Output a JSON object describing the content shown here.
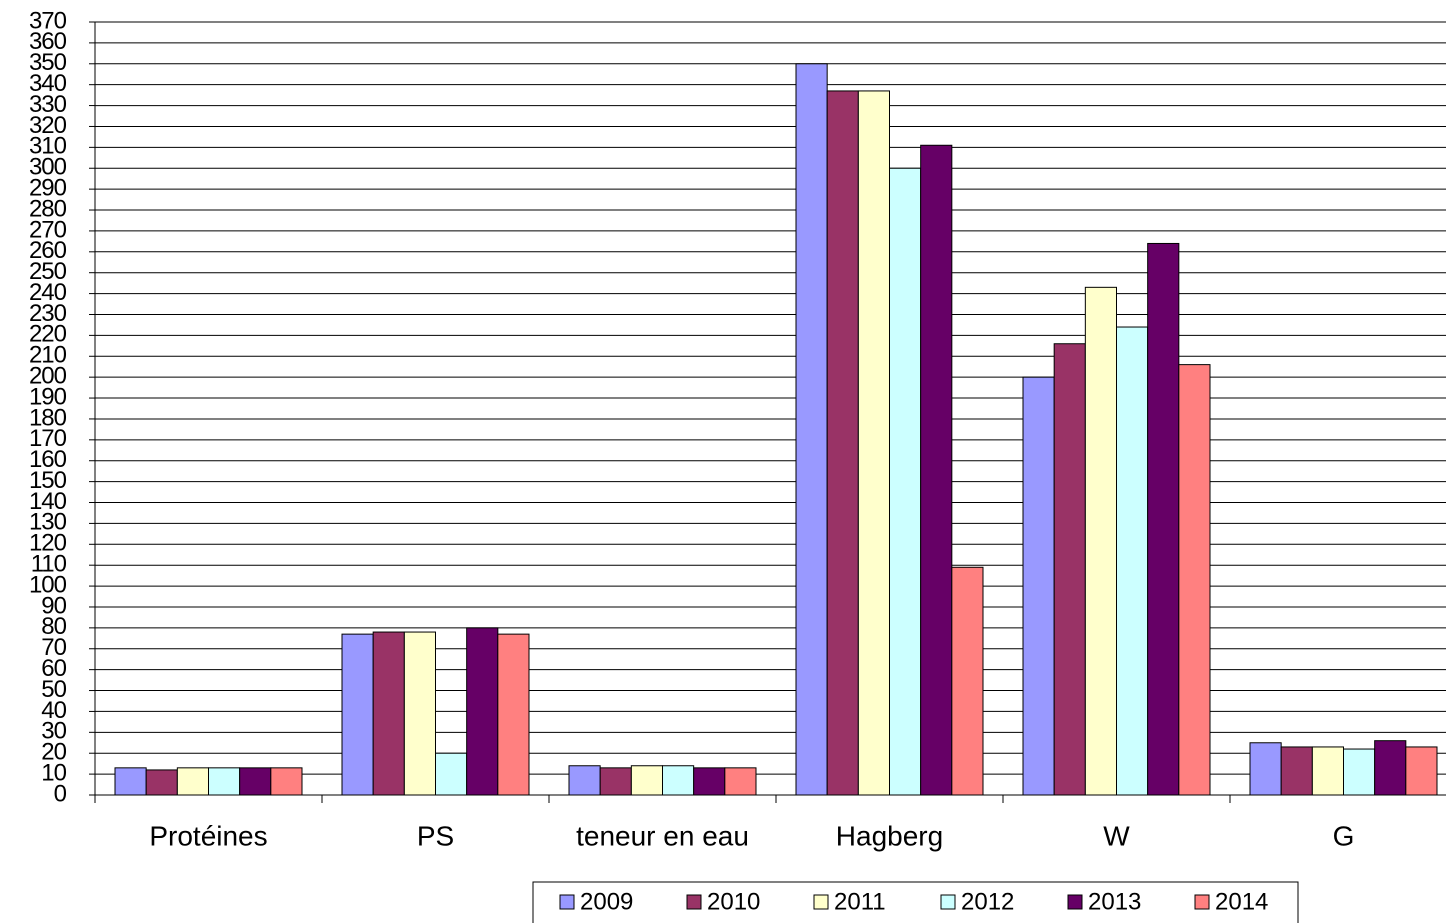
{
  "chart_data": {
    "type": "bar",
    "categories": [
      "Protéines",
      "PS",
      "teneur en eau",
      "Hagberg",
      "W",
      "G"
    ],
    "series": [
      {
        "name": "2009",
        "color": "#9999ff",
        "values": [
          13,
          77,
          14,
          350,
          200,
          25
        ]
      },
      {
        "name": "2010",
        "color": "#993366",
        "values": [
          12,
          78,
          13,
          337,
          216,
          23
        ]
      },
      {
        "name": "2011",
        "color": "#ffffcc",
        "values": [
          13,
          78,
          14,
          337,
          243,
          23
        ]
      },
      {
        "name": "2012",
        "color": "#ccffff",
        "values": [
          13,
          20,
          14,
          300,
          224,
          22
        ]
      },
      {
        "name": "2013",
        "color": "#660066",
        "values": [
          13,
          80,
          13,
          311,
          264,
          26
        ]
      },
      {
        "name": "2014",
        "color": "#ff8080",
        "values": [
          13,
          77,
          13,
          109,
          206,
          23
        ]
      }
    ],
    "ylim": [
      0,
      370
    ],
    "yticks": [
      0,
      10,
      20,
      30,
      40,
      50,
      60,
      70,
      80,
      90,
      100,
      110,
      120,
      130,
      140,
      150,
      160,
      170,
      180,
      190,
      200,
      210,
      220,
      230,
      240,
      250,
      260,
      270,
      280,
      290,
      300,
      310,
      320,
      330,
      340,
      350,
      360,
      370
    ],
    "grid": true,
    "legend": "bottom"
  }
}
